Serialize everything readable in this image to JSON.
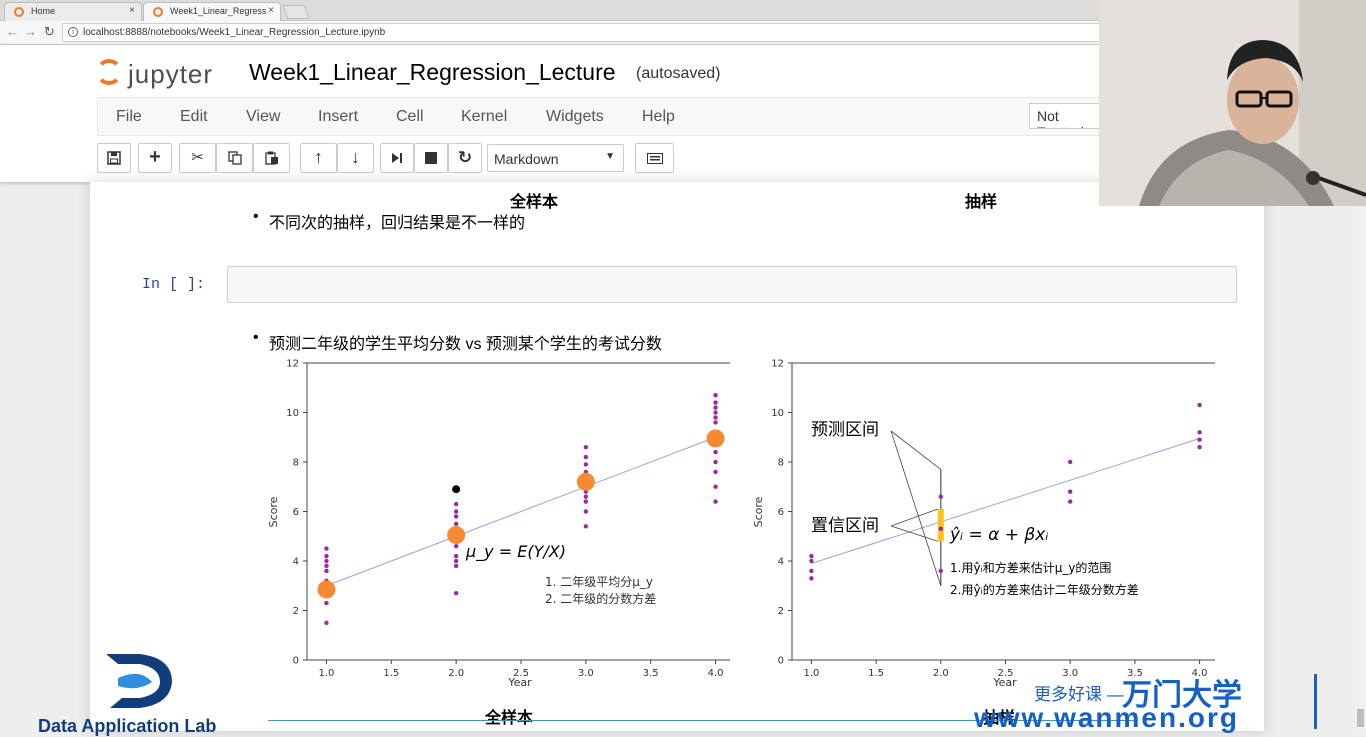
{
  "browser": {
    "tabs": [
      {
        "title": "Home",
        "close": "×"
      },
      {
        "title": "Week1_Linear_Regress",
        "close": "×"
      }
    ],
    "url": "localhost:8888/notebooks/Week1_Linear_Regression_Lecture.ipynb"
  },
  "jupyter": {
    "logo_text": "jupyter",
    "notebook_name": "Week1_Linear_Regression_Lecture",
    "autosave_status": "(autosaved)",
    "menu": [
      "File",
      "Edit",
      "View",
      "Insert",
      "Cell",
      "Kernel",
      "Widgets",
      "Help"
    ],
    "trust_status": "Not Trusted",
    "cell_type": "Markdown"
  },
  "notebook": {
    "top_label_left": "全样本",
    "top_label_right": "抽样",
    "bullet1": "不同次的抽样，回归结果是不一样的",
    "cell_prompt": "In  [  ]:",
    "bullet2": "预测二年级的学生平均分数 vs 预测某个学生的考试分数",
    "bottom_label_left": "全样本",
    "bottom_label_right": "抽样"
  },
  "chart_data": [
    {
      "type": "scatter",
      "xlabel": "Year",
      "ylabel": "Score",
      "xlim": [
        0.85,
        4.15
      ],
      "ylim": [
        0,
        12
      ],
      "xticks": [
        "1.0",
        "1.5",
        "2.0",
        "2.5",
        "3.0",
        "3.5",
        "4.0"
      ],
      "yticks": [
        "0",
        "2",
        "4",
        "6",
        "8",
        "10",
        "12"
      ],
      "students": {
        "x": [
          1,
          1,
          1,
          1,
          1,
          1,
          1,
          1,
          1,
          1,
          2,
          2,
          2,
          2,
          2,
          2,
          2,
          2,
          2,
          2,
          2,
          3,
          3,
          3,
          3,
          3,
          3,
          3,
          3,
          3,
          3,
          3,
          4,
          4,
          4,
          4,
          4,
          4,
          4,
          4,
          4,
          4,
          4,
          4,
          4
        ],
        "y": [
          1.5,
          2.3,
          2.7,
          3.0,
          3.2,
          3.6,
          3.8,
          4.0,
          4.2,
          4.5,
          2.7,
          3.8,
          4.0,
          4.2,
          4.6,
          4.9,
          5.2,
          5.5,
          5.8,
          6.0,
          6.3,
          5.4,
          6.0,
          6.4,
          6.6,
          6.8,
          7.0,
          7.3,
          7.6,
          7.9,
          8.2,
          8.6,
          6.4,
          7.0,
          7.6,
          8.0,
          8.4,
          8.8,
          9.2,
          9.6,
          9.8,
          10.0,
          10.2,
          10.4,
          10.7
        ]
      },
      "means": {
        "x": [
          1,
          2,
          3,
          4
        ],
        "y": [
          2.85,
          5.05,
          7.2,
          8.95
        ]
      },
      "highlight": {
        "x": 2,
        "y": 6.9
      },
      "line": {
        "x": [
          1,
          4
        ],
        "y": [
          3.0,
          9.0
        ]
      },
      "formula": "μ_y = E(Y/X)",
      "notes": [
        "1.    二年级平均分μ_y",
        "2.    二年级的分数方差"
      ]
    },
    {
      "type": "scatter",
      "xlabel": "Year",
      "ylabel": "Score",
      "xlim": [
        0.85,
        4.15
      ],
      "ylim": [
        0,
        12
      ],
      "xticks": [
        "1.0",
        "1.5",
        "2.0",
        "2.5",
        "3.0",
        "3.5",
        "4.0"
      ],
      "yticks": [
        "0",
        "2",
        "4",
        "6",
        "8",
        "10",
        "12"
      ],
      "samples": {
        "x": [
          1,
          1,
          1,
          1,
          2,
          2,
          2,
          3,
          3,
          3,
          4,
          4,
          4,
          4
        ],
        "y": [
          3.3,
          3.6,
          4.0,
          4.2,
          3.6,
          5.3,
          6.6,
          6.4,
          6.8,
          8.0,
          8.6,
          8.9,
          9.2,
          10.3
        ]
      },
      "line": {
        "x": [
          1,
          4
        ],
        "y": [
          3.9,
          8.95
        ]
      },
      "prediction_interval": [
        3.0,
        7.7
      ],
      "confidence_interval": [
        4.8,
        6.1
      ],
      "label_prediction": "预测区间",
      "label_confidence": "置信区间",
      "formula": "ŷᵢ = α + βxᵢ",
      "notes": [
        "1.用ŷᵢ和方差来估计μ_y的范围",
        "2.用ŷᵢ的方差来估计二年级分数方差"
      ]
    }
  ],
  "watermarks": {
    "lab_name": "Data Application Lab",
    "slogan": "更多好课 —",
    "brand": "万门大学",
    "site": "www.wanmen.org"
  },
  "colors": {
    "accent_orange": "#f37726",
    "mean_dot": "#f58a33",
    "student_dot": "#9a2aa0",
    "regression_line": "#8fa8e0",
    "interval_fill": "#ffc21a",
    "prompt_blue": "#303f9f",
    "brand_blue": "#1560c4"
  }
}
